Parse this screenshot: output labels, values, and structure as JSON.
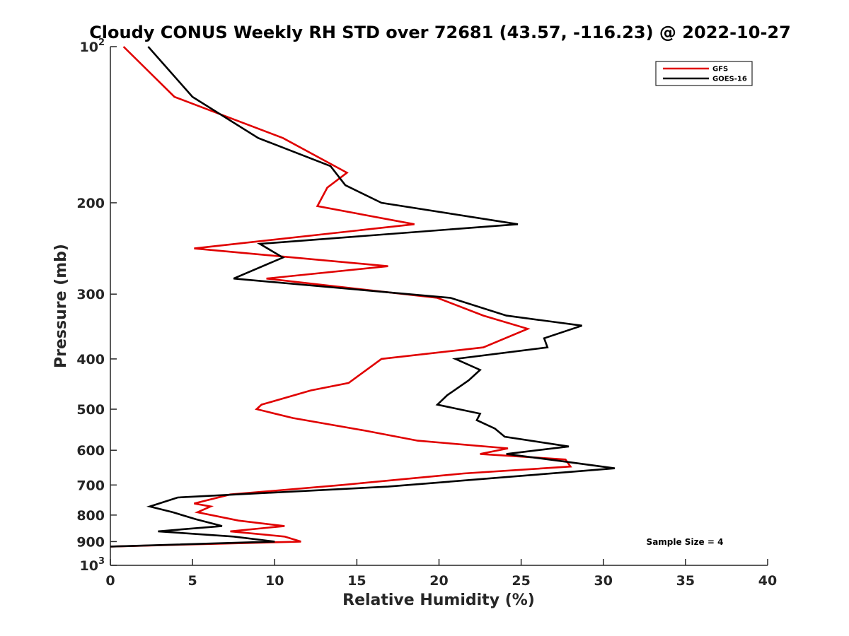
{
  "chart_data": {
    "type": "line",
    "title": "Cloudy CONUS Weekly RH STD over 72681 (43.57, -116.23) @ 2022-10-27",
    "xlabel": "Relative Humidity (%)",
    "ylabel": "Pressure (mb)",
    "xlim": [
      0,
      40
    ],
    "ylim": [
      100,
      1000
    ],
    "y_scale": "log",
    "y_reversed": true,
    "x_ticks": [
      "0",
      "5",
      "10",
      "15",
      "20",
      "25",
      "30",
      "35",
      "40"
    ],
    "y_ticks": [
      {
        "value": 100,
        "label": "10",
        "sup": "2"
      },
      {
        "value": 200,
        "label": "200",
        "sup": ""
      },
      {
        "value": 300,
        "label": "300",
        "sup": ""
      },
      {
        "value": 400,
        "label": "400",
        "sup": ""
      },
      {
        "value": 500,
        "label": "500",
        "sup": ""
      },
      {
        "value": 600,
        "label": "600",
        "sup": ""
      },
      {
        "value": 700,
        "label": "700",
        "sup": ""
      },
      {
        "value": 800,
        "label": "800",
        "sup": ""
      },
      {
        "value": 900,
        "label": "900",
        "sup": ""
      },
      {
        "value": 1000,
        "label": "10",
        "sup": "3"
      }
    ],
    "grid": false,
    "legend_position": "top-right",
    "annotation": "Sample Size = 4",
    "series": [
      {
        "name": "GFS",
        "color": "#e00000",
        "points": [
          [
            0.8,
            100
          ],
          [
            3.9,
            125
          ],
          [
            10.5,
            150
          ],
          [
            14.4,
            175
          ],
          [
            13.2,
            187
          ],
          [
            12.6,
            203
          ],
          [
            18.5,
            220
          ],
          [
            5.1,
            245
          ],
          [
            16.9,
            265
          ],
          [
            9.5,
            280
          ],
          [
            19.9,
            305
          ],
          [
            22.7,
            330
          ],
          [
            25.4,
            350
          ],
          [
            22.7,
            380
          ],
          [
            16.5,
            400
          ],
          [
            14.5,
            445
          ],
          [
            12.2,
            460
          ],
          [
            9.2,
            490
          ],
          [
            8.9,
            500
          ],
          [
            11.1,
            520
          ],
          [
            15.5,
            550
          ],
          [
            18.7,
            575
          ],
          [
            24.2,
            595
          ],
          [
            22.5,
            610
          ],
          [
            27.7,
            625
          ],
          [
            28.0,
            645
          ],
          [
            21.5,
            665
          ],
          [
            14.1,
            700
          ],
          [
            7.3,
            730
          ],
          [
            5.1,
            760
          ],
          [
            6.1,
            770
          ],
          [
            5.3,
            790
          ],
          [
            7.8,
            820
          ],
          [
            10.6,
            840
          ],
          [
            7.3,
            860
          ],
          [
            10.6,
            880
          ],
          [
            11.6,
            900
          ],
          [
            0.0,
            920
          ]
        ]
      },
      {
        "name": "GOES-16",
        "color": "#000000",
        "points": [
          [
            2.3,
            100
          ],
          [
            5.0,
            125
          ],
          [
            9.0,
            150
          ],
          [
            13.4,
            170
          ],
          [
            14.3,
            185
          ],
          [
            16.5,
            200
          ],
          [
            24.8,
            220
          ],
          [
            9.1,
            240
          ],
          [
            10.5,
            255
          ],
          [
            7.5,
            280
          ],
          [
            20.7,
            305
          ],
          [
            24.1,
            330
          ],
          [
            28.7,
            345
          ],
          [
            26.4,
            365
          ],
          [
            26.6,
            380
          ],
          [
            21.0,
            400
          ],
          [
            22.5,
            420
          ],
          [
            21.8,
            440
          ],
          [
            20.5,
            470
          ],
          [
            19.9,
            490
          ],
          [
            22.5,
            510
          ],
          [
            22.3,
            525
          ],
          [
            23.4,
            545
          ],
          [
            24.0,
            565
          ],
          [
            27.9,
            590
          ],
          [
            24.1,
            610
          ],
          [
            27.5,
            630
          ],
          [
            30.7,
            650
          ],
          [
            24.3,
            675
          ],
          [
            16.9,
            705
          ],
          [
            4.1,
            740
          ],
          [
            2.4,
            770
          ],
          [
            3.8,
            790
          ],
          [
            5.2,
            815
          ],
          [
            6.8,
            840
          ],
          [
            2.9,
            860
          ],
          [
            7.5,
            880
          ],
          [
            10.0,
            900
          ],
          [
            0.0,
            920
          ]
        ]
      }
    ]
  }
}
